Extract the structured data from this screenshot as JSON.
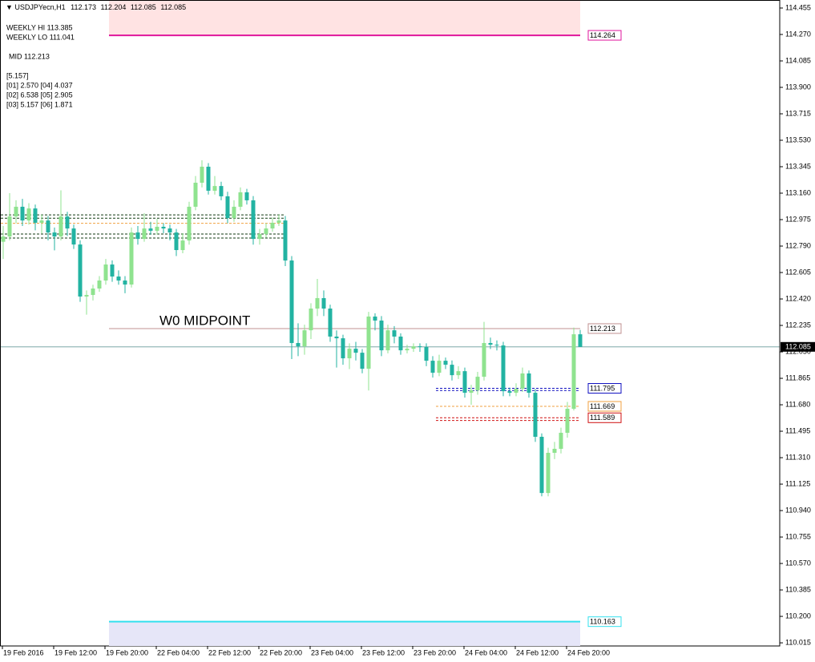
{
  "chart_data": {
    "type": "candlestick",
    "symbol": "USDJPYecn,H1",
    "info_lines": [
      "WEEKLY HI 113.385",
      "WEEKLY LO 111.041",
      "MID 112.213",
      "[5.157]",
      "[01] 2.570  [04] 4.037",
      "[02] 6.538  [05] 2.905",
      "[03] 5.157  [06] 1.871"
    ],
    "annotation": "W0 MIDPOINT",
    "up_color": "#8fe38f",
    "down_color": "#22b3a2",
    "categories": [
      "19 Feb 2016",
      null,
      null,
      null,
      null,
      null,
      null,
      null,
      "19 Feb 12:00",
      null,
      null,
      null,
      null,
      null,
      null,
      null,
      "19 Feb 20:00",
      null,
      null,
      null,
      null,
      null,
      null,
      null,
      "22 Feb 04:00",
      null,
      null,
      null,
      null,
      null,
      null,
      null,
      "22 Feb 12:00",
      null,
      null,
      null,
      null,
      null,
      null,
      null,
      "22 Feb 20:00",
      null,
      null,
      null,
      null,
      null,
      null,
      null,
      "23 Feb 04:00",
      null,
      null,
      null,
      null,
      null,
      null,
      null,
      "23 Feb 12:00",
      null,
      null,
      null,
      null,
      null,
      null,
      null,
      "23 Feb 20:00",
      null,
      null,
      null,
      null,
      null,
      null,
      null,
      "24 Feb 04:00",
      null,
      null,
      null,
      null,
      null,
      null,
      null,
      "24 Feb 12:00",
      null,
      null,
      null,
      null,
      null,
      null,
      null,
      "24 Feb 20:00",
      null,
      null
    ],
    "ohlc": [
      [
        112.82,
        112.93,
        112.7,
        112.857
      ],
      [
        112.857,
        113.16,
        112.83,
        112.997
      ],
      [
        112.997,
        113.11,
        112.95,
        113.065
      ],
      [
        113.065,
        113.12,
        112.93,
        112.969
      ],
      [
        112.969,
        113.09,
        112.94,
        113.053
      ],
      [
        113.053,
        113.08,
        112.9,
        112.953
      ],
      [
        112.953,
        113.01,
        112.88,
        112.969
      ],
      [
        112.969,
        113.0,
        112.83,
        112.885
      ],
      [
        112.885,
        112.92,
        112.76,
        112.857
      ],
      [
        112.857,
        113.18,
        112.83,
        112.997
      ],
      [
        112.997,
        113.03,
        112.86,
        112.913
      ],
      [
        112.913,
        112.94,
        112.77,
        112.801
      ],
      [
        112.801,
        112.83,
        112.4,
        112.437
      ],
      [
        112.437,
        112.48,
        112.31,
        112.448
      ],
      [
        112.448,
        112.52,
        112.41,
        112.493
      ],
      [
        112.493,
        112.58,
        112.47,
        112.549
      ],
      [
        112.549,
        112.7,
        112.52,
        112.661
      ],
      [
        112.661,
        112.69,
        112.54,
        112.577
      ],
      [
        112.577,
        112.62,
        112.52,
        112.549
      ],
      [
        112.549,
        112.58,
        112.46,
        112.521
      ],
      [
        112.521,
        112.92,
        112.5,
        112.885
      ],
      [
        112.885,
        112.93,
        112.8,
        112.84
      ],
      [
        112.84,
        113.02,
        112.82,
        112.913
      ],
      [
        112.913,
        112.96,
        112.87,
        112.897
      ],
      [
        112.897,
        112.98,
        112.87,
        112.925
      ],
      [
        112.925,
        112.95,
        112.88,
        112.913
      ],
      [
        112.913,
        112.94,
        112.83,
        112.885
      ],
      [
        112.885,
        112.91,
        112.72,
        112.762
      ],
      [
        112.762,
        112.88,
        112.74,
        112.829
      ],
      [
        112.829,
        113.1,
        112.8,
        113.065
      ],
      [
        113.065,
        113.28,
        113.04,
        113.233
      ],
      [
        113.233,
        113.39,
        113.2,
        113.345
      ],
      [
        113.345,
        113.37,
        113.15,
        113.177
      ],
      [
        113.177,
        113.28,
        113.15,
        113.21
      ],
      [
        113.21,
        113.24,
        113.11,
        113.138
      ],
      [
        113.138,
        113.17,
        112.95,
        112.986
      ],
      [
        112.986,
        113.11,
        112.96,
        113.065
      ],
      [
        113.065,
        113.2,
        113.04,
        113.166
      ],
      [
        113.166,
        113.19,
        113.08,
        113.11
      ],
      [
        113.11,
        113.14,
        112.8,
        112.84
      ],
      [
        112.84,
        112.91,
        112.8,
        112.874
      ],
      [
        112.874,
        112.95,
        112.85,
        112.913
      ],
      [
        112.913,
        112.99,
        112.89,
        112.953
      ],
      [
        112.953,
        113.01,
        112.93,
        112.969
      ],
      [
        112.969,
        113.0,
        112.65,
        112.689
      ],
      [
        112.689,
        112.72,
        112.0,
        112.112
      ],
      [
        112.112,
        112.25,
        112.02,
        112.089
      ],
      [
        112.089,
        112.24,
        112.03,
        112.201
      ],
      [
        112.201,
        112.39,
        112.14,
        112.353
      ],
      [
        112.353,
        112.56,
        112.3,
        112.426
      ],
      [
        112.426,
        112.48,
        112.3,
        112.353
      ],
      [
        112.353,
        112.38,
        112.12,
        112.157
      ],
      [
        112.157,
        112.2,
        111.94,
        112.145
      ],
      [
        112.145,
        112.17,
        111.96,
        112.005
      ],
      [
        112.005,
        112.11,
        111.93,
        112.072
      ],
      [
        112.072,
        112.12,
        111.99,
        112.044
      ],
      [
        112.044,
        112.07,
        111.9,
        111.932
      ],
      [
        111.932,
        112.33,
        111.78,
        112.297
      ],
      [
        112.297,
        112.32,
        112.2,
        112.269
      ],
      [
        112.269,
        112.3,
        112.02,
        112.061
      ],
      [
        112.061,
        112.24,
        112.04,
        112.201
      ],
      [
        112.201,
        112.23,
        112.11,
        112.157
      ],
      [
        112.157,
        112.18,
        112.03,
        112.061
      ],
      [
        112.061,
        112.1,
        112.04,
        112.072
      ],
      [
        112.072,
        112.11,
        112.05,
        112.089
      ],
      [
        112.089,
        112.11,
        112.05,
        112.084
      ],
      [
        112.084,
        112.11,
        111.95,
        111.988
      ],
      [
        111.988,
        112.02,
        111.87,
        111.904
      ],
      [
        111.904,
        112.03,
        111.88,
        111.988
      ],
      [
        111.988,
        112.01,
        111.93,
        111.96
      ],
      [
        111.96,
        111.99,
        111.85,
        111.887
      ],
      [
        111.887,
        111.95,
        111.86,
        111.915
      ],
      [
        111.915,
        111.94,
        111.73,
        111.764
      ],
      [
        111.764,
        111.82,
        111.68,
        111.781
      ],
      [
        111.781,
        111.91,
        111.75,
        111.876
      ],
      [
        111.876,
        112.26,
        111.85,
        112.112
      ],
      [
        112.112,
        112.15,
        112.07,
        112.1
      ],
      [
        112.1,
        112.13,
        112.06,
        112.095
      ],
      [
        112.095,
        112.12,
        111.74,
        111.775
      ],
      [
        111.775,
        111.8,
        111.74,
        111.764
      ],
      [
        111.764,
        111.83,
        111.74,
        111.792
      ],
      [
        111.792,
        111.94,
        111.77,
        111.899
      ],
      [
        111.899,
        111.92,
        111.73,
        111.764
      ],
      [
        111.764,
        111.79,
        111.42,
        111.456
      ],
      [
        111.456,
        111.48,
        111.04,
        111.063
      ],
      [
        111.063,
        111.38,
        111.04,
        111.344
      ],
      [
        111.344,
        111.42,
        111.3,
        111.372
      ],
      [
        111.372,
        111.52,
        111.34,
        111.484
      ],
      [
        111.484,
        111.7,
        111.45,
        111.652
      ],
      [
        111.652,
        112.22,
        111.64,
        112.173
      ],
      [
        112.173,
        112.204,
        112.085,
        112.085
      ]
    ],
    "ylim": [
      109.993,
      114.511
    ],
    "yticks": [
      114.455,
      {
        "value": 114.27,
        "label": "114.270"
      },
      114.085,
      {
        "value": 113.9,
        "label": "113.900"
      },
      113.715,
      {
        "value": 113.53,
        "label": "113.530"
      },
      113.345,
      {
        "value": 113.16,
        "label": "113.160"
      },
      112.975,
      {
        "value": 112.79,
        "label": "112.790"
      },
      112.605,
      {
        "value": 112.42,
        "label": "112.420"
      },
      112.235,
      {
        "value": 112.05,
        "label": "112.050"
      },
      111.865,
      {
        "value": 111.68,
        "label": "111.680"
      },
      111.495,
      {
        "value": 111.31,
        "label": "111.310"
      },
      111.125,
      {
        "value": 110.94,
        "label": "110.940"
      },
      110.755,
      {
        "value": 110.57,
        "label": "110.570"
      },
      110.385,
      {
        "value": 110.2,
        "label": "110.200"
      },
      110.015
    ],
    "levels": [
      {
        "value": 114.264,
        "color": "#e0169c",
        "style": "solid",
        "start": 17,
        "end": 90,
        "tag": true,
        "band": "#ffe3e3"
      },
      {
        "value": 110.163,
        "color": "#33e0ee",
        "style": "solid",
        "start": 17,
        "end": 90,
        "tag": true,
        "band": "#e6e6f8"
      },
      {
        "value": 112.213,
        "color": "#c09090",
        "style": "solid",
        "start": 17,
        "end": 90,
        "tag": true
      },
      {
        "value": 113.008,
        "color": "#103a10",
        "style": "dashed",
        "start": 0,
        "end": 44
      },
      {
        "value": 112.985,
        "color": "#103a10",
        "style": "dashed",
        "start": 0,
        "end": 44
      },
      {
        "value": 112.949,
        "color": "#f0a040",
        "style": "dashed",
        "start": 0,
        "end": 44
      },
      {
        "value": 112.874,
        "color": "#103a10",
        "style": "dashed",
        "start": 0,
        "end": 44
      },
      {
        "value": 112.846,
        "color": "#103a10",
        "style": "dashed",
        "start": 0,
        "end": 44
      },
      {
        "value": 111.795,
        "color": "#1010c0",
        "style": "dashed",
        "start": 68,
        "end": 90,
        "tag": true
      },
      {
        "value": 111.78,
        "color": "#1010c0",
        "style": "dashed",
        "start": 68,
        "end": 90
      },
      {
        "value": 111.669,
        "color": "#f0a040",
        "style": "dashed",
        "start": 68,
        "end": 90,
        "tag": true
      },
      {
        "value": 111.589,
        "color": "#d01010",
        "style": "dashed",
        "start": 68,
        "end": 90,
        "tag": true
      },
      {
        "value": 111.57,
        "color": "#d01010",
        "style": "dashed",
        "start": 68,
        "end": 90
      }
    ]
  }
}
